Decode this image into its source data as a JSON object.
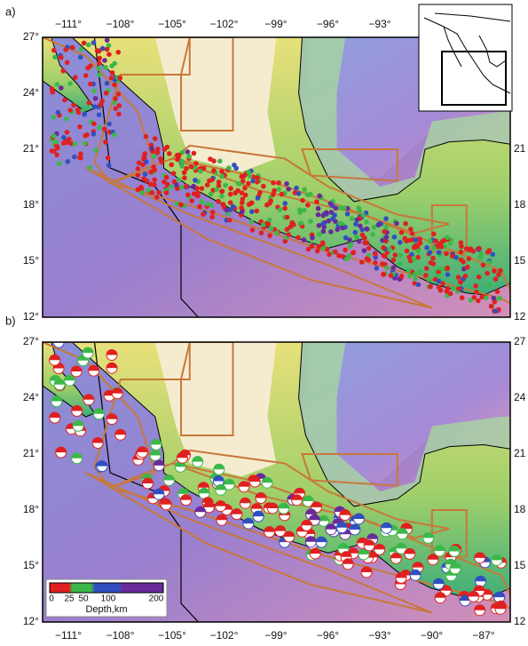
{
  "panels": [
    {
      "label": "a)",
      "top_lon_labels": [
        "−111°",
        "−108°",
        "−105°",
        "−102°",
        "−99°",
        "−96°",
        "−93°"
      ],
      "left_lat_labels": [
        "27°",
        "24°",
        "21°",
        "18°",
        "15°",
        "12°"
      ],
      "right_lat_labels": [
        null,
        null,
        "21",
        "18",
        "15",
        "12"
      ]
    },
    {
      "label": "b)",
      "bottom_lon_labels": [
        "−111°",
        "−108°",
        "−105°",
        "−102°",
        "−99°",
        "−96°",
        "−93°",
        "−90°",
        "−87°"
      ],
      "left_lat_labels": [
        "27°",
        "24°",
        "21°",
        "18°",
        "15°",
        "12°"
      ],
      "right_lat_labels": [
        "27",
        "24",
        "21",
        "18",
        "15",
        "12"
      ],
      "legend": {
        "ticks": [
          "0",
          "25",
          "50",
          "100",
          "200"
        ],
        "title": "Depth,km"
      }
    }
  ]
}
